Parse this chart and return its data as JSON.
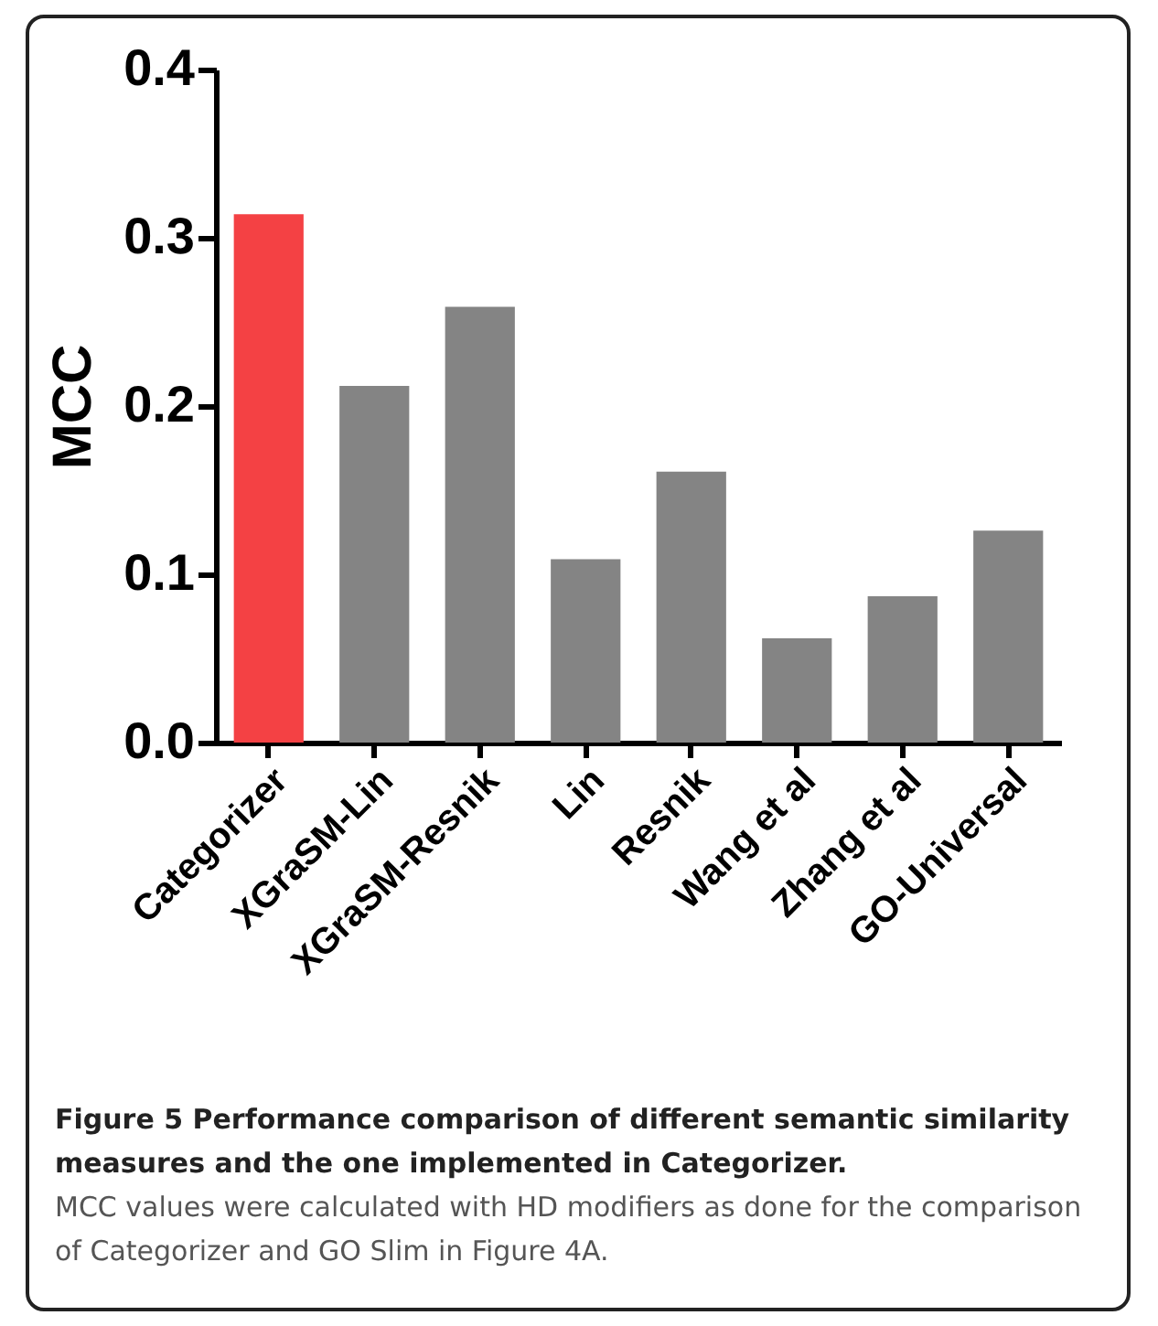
{
  "chart_data": {
    "type": "bar",
    "title": "Figure 5 Performance comparison of different semantic similarity measures and the one implemented in Categorizer.",
    "annotations": [
      "MCC values were calculated with HD modifiers as done for the comparison of Categorizer and GO Slim in Figure 4A."
    ],
    "ylabel": "MCC",
    "categories": [
      "Categorizer",
      "XGraSM-Lin",
      "XGraSM-Resnik",
      "Lin",
      "Resnik",
      "Wang et al",
      "Zhang et al",
      "GO-Universal"
    ],
    "values": [
      0.314,
      0.212,
      0.259,
      0.109,
      0.161,
      0.062,
      0.087,
      0.126
    ],
    "colors": [
      "#f44144",
      "#848484",
      "#848484",
      "#848484",
      "#848484",
      "#848484",
      "#848484",
      "#848484"
    ],
    "ylim": [
      0,
      0.4
    ],
    "yticks": [
      {
        "value": 0,
        "label": "0.0"
      },
      0.1,
      0.2,
      0.3,
      0.4
    ],
    "grid": false
  }
}
